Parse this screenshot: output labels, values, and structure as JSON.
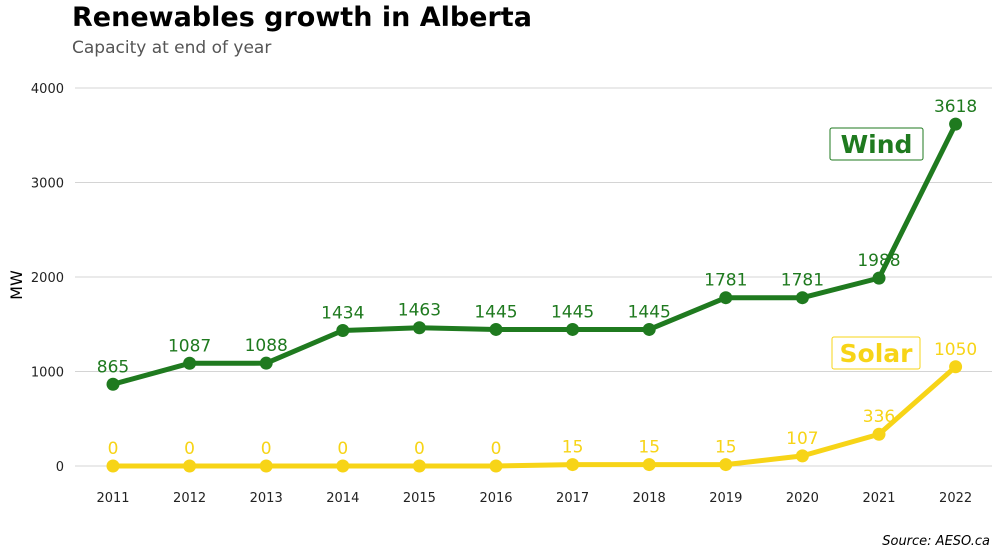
{
  "header": {
    "title": "Renewables growth in Alberta",
    "subtitle": "Capacity at end of year"
  },
  "footer": {
    "source": "Source: AESO.ca"
  },
  "colors": {
    "wind": "#1f7a1f",
    "solar": "#f7d417",
    "grid": "#d4d4d4"
  },
  "chart_data": {
    "type": "line",
    "title": "Renewables growth in Alberta",
    "subtitle": "Capacity at end of year",
    "xlabel": "",
    "ylabel": "MW",
    "ylim": [
      0,
      4000
    ],
    "yticks": [
      0,
      1000,
      2000,
      3000,
      4000
    ],
    "grid": true,
    "categories": [
      "2011",
      "2012",
      "2013",
      "2014",
      "2015",
      "2016",
      "2017",
      "2018",
      "2019",
      "2020",
      "2021",
      "2022"
    ],
    "series": [
      {
        "name": "Wind",
        "color": "#1f7a1f",
        "values": [
          865,
          1087,
          1088,
          1434,
          1463,
          1445,
          1445,
          1445,
          1781,
          1781,
          1988,
          3618
        ]
      },
      {
        "name": "Solar",
        "color": "#f7d417",
        "values": [
          0,
          0,
          0,
          0,
          0,
          0,
          15,
          15,
          15,
          107,
          336,
          1050
        ]
      }
    ],
    "annotations": [
      "Wind",
      "Solar"
    ],
    "source": "Source: AESO.ca"
  }
}
